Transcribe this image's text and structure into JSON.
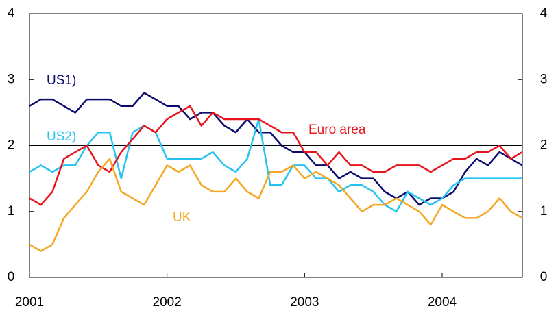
{
  "chart_data": {
    "type": "line",
    "x": [
      2001,
      2001.083,
      2001.167,
      2001.25,
      2001.333,
      2001.417,
      2001.5,
      2001.583,
      2001.667,
      2001.75,
      2001.833,
      2001.917,
      2002,
      2002.083,
      2002.167,
      2002.25,
      2002.333,
      2002.417,
      2002.5,
      2002.583,
      2002.667,
      2002.75,
      2002.833,
      2002.917,
      2003,
      2003.083,
      2003.167,
      2003.25,
      2003.333,
      2003.417,
      2003.5,
      2003.583,
      2003.667,
      2003.75,
      2003.833,
      2003.917,
      2004,
      2004.083,
      2004.167,
      2004.25,
      2004.333,
      2004.417,
      2004.5,
      2004.583
    ],
    "xlim": [
      2001,
      2004.583
    ],
    "xticks": [
      2001,
      2002,
      2003,
      2004
    ],
    "ylim": [
      0,
      4
    ],
    "yticks": [
      0,
      1,
      2,
      3,
      4
    ],
    "y2lim": [
      0,
      4
    ],
    "y2ticks": [
      0,
      1,
      2,
      3,
      4
    ],
    "hline": 2,
    "series": [
      {
        "name": "US1)",
        "color": "#0b0b6f",
        "values": [
          2.6,
          2.7,
          2.7,
          2.6,
          2.5,
          2.7,
          2.7,
          2.7,
          2.6,
          2.6,
          2.8,
          2.7,
          2.6,
          2.6,
          2.4,
          2.5,
          2.5,
          2.3,
          2.2,
          2.4,
          2.2,
          2.2,
          2.0,
          1.9,
          1.9,
          1.7,
          1.7,
          1.5,
          1.6,
          1.5,
          1.5,
          1.3,
          1.2,
          1.3,
          1.1,
          1.2,
          1.2,
          1.3,
          1.6,
          1.8,
          1.7,
          1.9,
          1.8,
          1.7
        ]
      },
      {
        "name": "US2)",
        "color": "#25c4f0",
        "values": [
          1.6,
          1.7,
          1.6,
          1.7,
          1.7,
          2.0,
          2.2,
          2.2,
          1.5,
          2.2,
          2.3,
          2.2,
          1.8,
          1.8,
          1.8,
          1.8,
          1.9,
          1.7,
          1.6,
          1.8,
          2.4,
          1.4,
          1.4,
          1.7,
          1.7,
          1.5,
          1.5,
          1.3,
          1.4,
          1.4,
          1.3,
          1.1,
          1.0,
          1.3,
          1.2,
          1.1,
          1.2,
          1.4,
          1.5,
          1.5,
          1.5,
          1.5,
          1.5,
          1.5
        ]
      },
      {
        "name": "Euro area",
        "color": "#e8141c",
        "values": [
          1.2,
          1.1,
          1.3,
          1.8,
          1.9,
          2.0,
          1.7,
          1.6,
          1.9,
          2.1,
          2.3,
          2.2,
          2.4,
          2.5,
          2.6,
          2.3,
          2.5,
          2.4,
          2.4,
          2.4,
          2.4,
          2.3,
          2.2,
          2.2,
          1.9,
          1.9,
          1.7,
          1.9,
          1.7,
          1.7,
          1.6,
          1.6,
          1.7,
          1.7,
          1.7,
          1.6,
          1.7,
          1.8,
          1.8,
          1.9,
          1.9,
          2.0,
          1.8,
          1.9
        ]
      },
      {
        "name": "UK",
        "color": "#f5a623",
        "values": [
          0.5,
          0.4,
          0.5,
          0.9,
          1.1,
          1.3,
          1.6,
          1.8,
          1.3,
          1.2,
          1.1,
          1.4,
          1.7,
          1.6,
          1.7,
          1.4,
          1.3,
          1.3,
          1.5,
          1.3,
          1.2,
          1.6,
          1.6,
          1.7,
          1.5,
          1.6,
          1.5,
          1.4,
          1.2,
          1.0,
          1.1,
          1.1,
          1.2,
          1.1,
          1.0,
          0.8,
          1.1,
          1.0,
          0.9,
          0.9,
          1.0,
          1.2,
          1.0,
          0.9
        ]
      }
    ]
  }
}
